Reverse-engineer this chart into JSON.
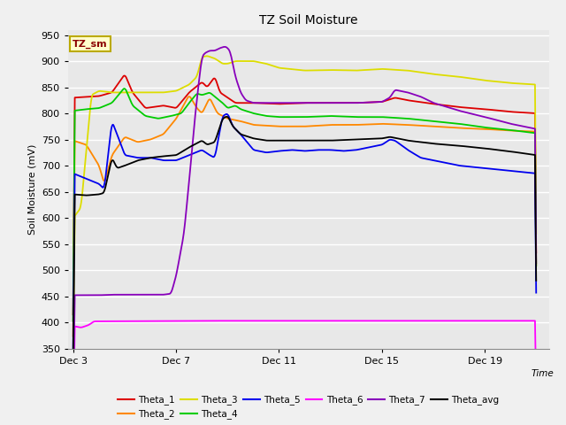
{
  "title": "TZ Soil Moisture",
  "ylabel": "Soil Moisture (mV)",
  "xlabel": "Time",
  "label_box": "TZ_sm",
  "ylim": [
    350,
    960
  ],
  "yticks": [
    350,
    400,
    450,
    500,
    550,
    600,
    650,
    700,
    750,
    800,
    850,
    900,
    950
  ],
  "bg_color": "#e8e8e8",
  "fig_color": "#f0f0f0",
  "series_colors": {
    "Theta_1": "#dd0000",
    "Theta_2": "#ff8800",
    "Theta_3": "#dddd00",
    "Theta_4": "#00cc00",
    "Theta_5": "#0000ee",
    "Theta_6": "#ff00ff",
    "Theta_7": "#8800bb",
    "Theta_avg": "#000000"
  },
  "x_tick_labels": [
    "Dec 3",
    "Dec 7",
    "Dec 11",
    "Dec 15",
    "Dec 19"
  ],
  "x_tick_pos": [
    0,
    4,
    8,
    12,
    16
  ],
  "x_range": [
    -0.2,
    18.5
  ],
  "lw": 1.3
}
